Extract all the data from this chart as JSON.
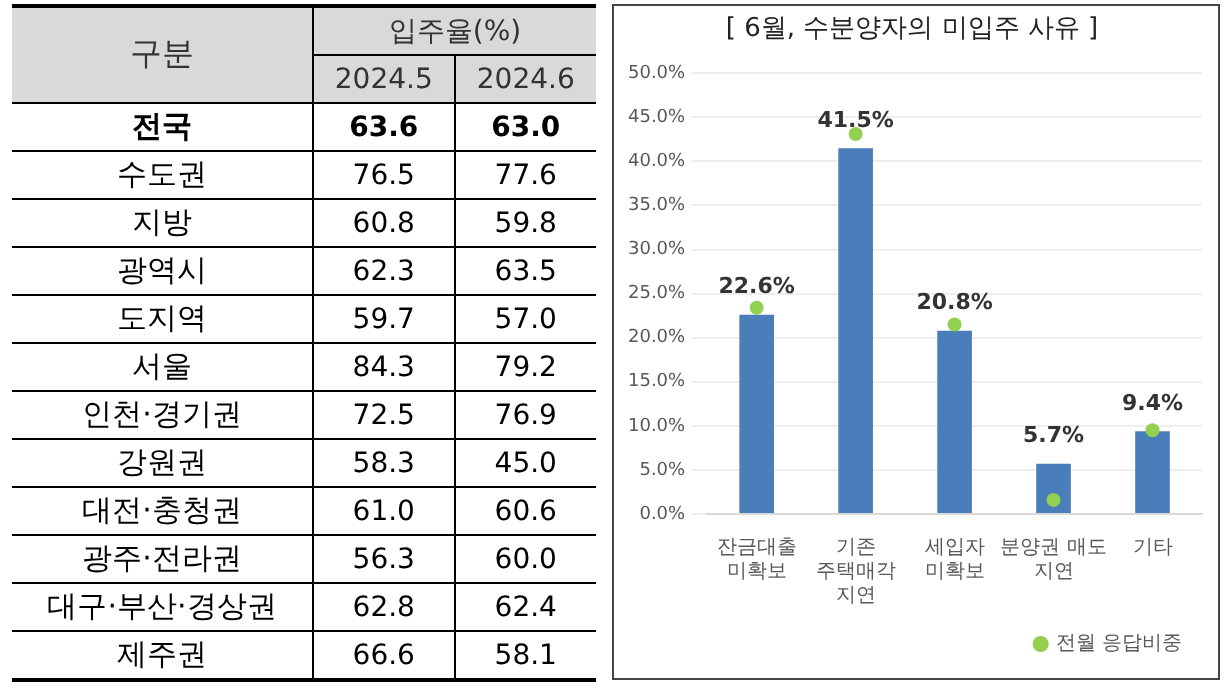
{
  "chart_data": [
    {
      "type": "heatmap",
      "title": "입주율(%)",
      "ylabel": "구분",
      "categories": [
        "2024.5",
        "2024.6"
      ],
      "y_categories": [
        "전국",
        "수도권",
        "지방",
        "광역시",
        "도지역",
        "서울",
        "인천·경기권",
        "강원권",
        "대전·충청권",
        "광주·전라권",
        "대구·부산·경상권",
        "제주권"
      ],
      "cells": [
        [
          63.6,
          63.0
        ],
        [
          76.5,
          77.6
        ],
        [
          60.8,
          59.8
        ],
        [
          62.3,
          63.5
        ],
        [
          59.7,
          57.0
        ],
        [
          84.3,
          79.2
        ],
        [
          72.5,
          76.9
        ],
        [
          58.3,
          45.0
        ],
        [
          61.0,
          60.6
        ],
        [
          56.3,
          60.0
        ],
        [
          62.8,
          62.4
        ],
        [
          66.6,
          58.1
        ]
      ],
      "data_labels": true,
      "cell_labels": [
        [
          "63.6",
          "63.0"
        ],
        [
          "76.5",
          "77.6"
        ],
        [
          "60.8",
          "59.8"
        ],
        [
          "62.3",
          "63.5"
        ],
        [
          "59.7",
          "57.0"
        ],
        [
          "84.3",
          "79.2"
        ],
        [
          "72.5",
          "76.9"
        ],
        [
          "58.3",
          "45.0"
        ],
        [
          "61.0",
          "60.6"
        ],
        [
          "56.3",
          "60.0"
        ],
        [
          "62.8",
          "62.4"
        ],
        [
          "66.6",
          "58.1"
        ]
      ]
    },
    {
      "type": "bar",
      "title": "[ 6월, 수분양자의 미입주 사유 ]",
      "categories": [
        "잔금대출\n미확보",
        "기존\n주택매각\n지연",
        "세입자\n미확보",
        "분양권 매도\n지연",
        "기타"
      ],
      "series": [
        {
          "type": "bar",
          "color": "#4a7ebb",
          "values": [
            22.6,
            41.5,
            20.8,
            5.7,
            9.4
          ],
          "value_labels": [
            "22.6%",
            "41.5%",
            "20.8%",
            "5.7%",
            "9.4%"
          ]
        },
        {
          "type": "scatter",
          "name": "전월 응답비중",
          "color": "#92d050",
          "values": [
            23.4,
            43.1,
            21.5,
            1.6,
            9.5
          ]
        }
      ],
      "ylim": [
        0,
        50
      ],
      "yticks": [
        {
          "value": 0,
          "label": "0.0%"
        },
        {
          "value": 5,
          "label": "5.0%"
        },
        {
          "value": 10,
          "label": "10.0%"
        },
        {
          "value": 15,
          "label": "15.0%"
        },
        {
          "value": 20,
          "label": "20.0%"
        },
        {
          "value": 25,
          "label": "25.0%"
        },
        {
          "value": 30,
          "label": "30.0%"
        },
        {
          "value": 35,
          "label": "35.0%"
        },
        {
          "value": 40,
          "label": "40.0%"
        },
        {
          "value": 45,
          "label": "45.0%"
        },
        {
          "value": 50,
          "label": "50.0%"
        }
      ],
      "grid": "y",
      "legend": "bottom right",
      "marker": "circle"
    }
  ]
}
